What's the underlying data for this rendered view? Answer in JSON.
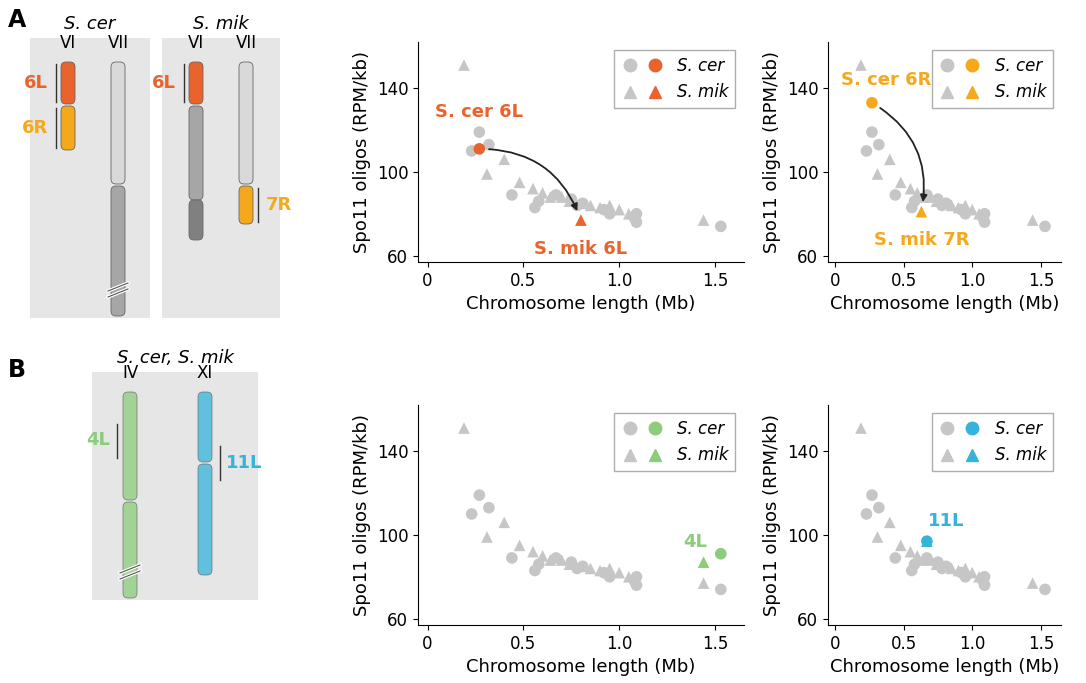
{
  "diagrams": [
    {
      "panel": "A",
      "groups": [
        {
          "title": "S. cer",
          "chromosomes": [
            {
              "name": "VI",
              "arms": [
                {
                  "label": "6L",
                  "color": "#e9632c"
                },
                {
                  "label": "6R",
                  "color": "#f6a81c"
                }
              ]
            },
            {
              "name": "VII",
              "arms": []
            }
          ]
        },
        {
          "title": "S. mik",
          "chromosomes": [
            {
              "name": "VI",
              "arms": [
                {
                  "label": "6L",
                  "color": "#e9632c"
                }
              ]
            },
            {
              "name": "VII",
              "arms": [
                {
                  "label": "7R",
                  "color": "#f6a81c"
                }
              ]
            }
          ]
        }
      ]
    },
    {
      "panel": "B",
      "groups": [
        {
          "title": "S. cer, S. mik",
          "chromosomes": [
            {
              "name": "IV",
              "arms": [
                {
                  "label": "4L",
                  "color": "#8dcc7c"
                }
              ]
            },
            {
              "name": "XI",
              "arms": [
                {
                  "label": "11L",
                  "color": "#35b4db"
                }
              ]
            }
          ]
        }
      ]
    }
  ],
  "chart_data": [
    {
      "type": "scatter",
      "xlabel": "Chromosome length (Mb)",
      "ylabel": "Spo11 oligos (RPM/kb)",
      "xlim": [
        -0.05,
        1.65
      ],
      "ylim": [
        57,
        162
      ],
      "xticks": [
        0,
        0.5,
        {
          "value": 1,
          "label": "1.0"
        },
        1.5
      ],
      "yticks": [
        60,
        100,
        140
      ],
      "legend": "upper right",
      "series": [
        {
          "name": "S. cer",
          "marker": "circle",
          "color": "#c6c6c6",
          "x": [
            0.23,
            0.27,
            0.32,
            0.44,
            0.56,
            0.58,
            0.67,
            0.75,
            0.78,
            0.81,
            0.92,
            0.95,
            1.08,
            1.09,
            1.09,
            1.53
          ],
          "values": [
            110,
            119,
            113,
            89,
            83,
            86,
            89,
            87,
            84,
            85,
            82,
            80,
            78,
            76,
            80,
            74
          ]
        },
        {
          "name": "S. mik",
          "marker": "triangle",
          "color": "#c6c6c6",
          "x": [
            0.19,
            0.31,
            0.4,
            0.48,
            0.55,
            0.6,
            0.64,
            0.7,
            0.74,
            0.8,
            0.85,
            0.9,
            0.95,
            1.0,
            1.05,
            1.44
          ],
          "values": [
            151,
            99,
            106,
            95,
            92,
            90,
            88,
            88,
            86,
            85,
            84,
            83,
            84,
            82,
            80,
            77
          ]
        },
        {
          "name": "S. cer",
          "marker": "circle",
          "color": "#e9632c",
          "x": [
            0.27
          ],
          "values": [
            111
          ]
        },
        {
          "name": "S. mik",
          "marker": "triangle",
          "color": "#e9632c",
          "x": [
            0.8
          ],
          "values": [
            77
          ]
        }
      ],
      "annotations": [
        {
          "text": "S. cer 6L",
          "x": 0.27,
          "y": 111,
          "color": "#e9632c"
        },
        {
          "text": "S. mik 6L",
          "x": 0.8,
          "y": 77,
          "color": "#e9632c"
        }
      ]
    },
    {
      "type": "scatter",
      "xlabel": "Chromosome length (Mb)",
      "ylabel": "Spo11 oligos (RPM/kb)",
      "xlim": [
        -0.05,
        1.65
      ],
      "ylim": [
        57,
        162
      ],
      "xticks": [
        0,
        0.5,
        {
          "value": 1,
          "label": "1.0"
        },
        1.5
      ],
      "yticks": [
        60,
        100,
        140
      ],
      "legend": "upper right",
      "series": [
        {
          "name": "S. cer",
          "marker": "circle",
          "color": "#c6c6c6",
          "x": [
            0.23,
            0.27,
            0.32,
            0.44,
            0.56,
            0.58,
            0.67,
            0.75,
            0.78,
            0.81,
            0.92,
            0.95,
            1.08,
            1.09,
            1.09,
            1.53
          ],
          "values": [
            110,
            119,
            113,
            89,
            83,
            86,
            89,
            87,
            84,
            85,
            82,
            80,
            78,
            76,
            80,
            74
          ]
        },
        {
          "name": "S. mik",
          "marker": "triangle",
          "color": "#c6c6c6",
          "x": [
            0.19,
            0.31,
            0.4,
            0.48,
            0.55,
            0.6,
            0.64,
            0.7,
            0.74,
            0.8,
            0.85,
            0.9,
            0.95,
            1.0,
            1.05,
            1.44
          ],
          "values": [
            151,
            99,
            106,
            95,
            92,
            90,
            88,
            88,
            86,
            85,
            84,
            83,
            84,
            82,
            80,
            77
          ]
        },
        {
          "name": "S. cer",
          "marker": "circle",
          "color": "#f6a81c",
          "x": [
            0.27
          ],
          "values": [
            133
          ]
        },
        {
          "name": "S. mik",
          "marker": "triangle",
          "color": "#f6a81c",
          "x": [
            0.63
          ],
          "values": [
            81
          ]
        }
      ],
      "annotations": [
        {
          "text": "S. cer 6R",
          "x": 0.27,
          "y": 133,
          "color": "#f6a81c"
        },
        {
          "text": "S. mik 7R",
          "x": 0.63,
          "y": 81,
          "color": "#f6a81c"
        }
      ]
    },
    {
      "type": "scatter",
      "xlabel": "Chromosome length (Mb)",
      "ylabel": "Spo11 oligos (RPM/kb)",
      "xlim": [
        -0.05,
        1.65
      ],
      "ylim": [
        57,
        162
      ],
      "xticks": [
        0,
        0.5,
        {
          "value": 1,
          "label": "1.0"
        },
        1.5
      ],
      "yticks": [
        60,
        100,
        140
      ],
      "legend": "upper right",
      "series": [
        {
          "name": "S. cer",
          "marker": "circle",
          "color": "#c6c6c6",
          "x": [
            0.23,
            0.27,
            0.32,
            0.44,
            0.56,
            0.58,
            0.67,
            0.75,
            0.78,
            0.81,
            0.92,
            0.95,
            1.08,
            1.09,
            1.09,
            1.53
          ],
          "values": [
            110,
            119,
            113,
            89,
            83,
            86,
            89,
            87,
            84,
            85,
            82,
            80,
            78,
            76,
            80,
            74
          ]
        },
        {
          "name": "S. mik",
          "marker": "triangle",
          "color": "#c6c6c6",
          "x": [
            0.19,
            0.31,
            0.4,
            0.48,
            0.55,
            0.6,
            0.64,
            0.7,
            0.74,
            0.8,
            0.85,
            0.9,
            0.95,
            1.0,
            1.05,
            1.44
          ],
          "values": [
            151,
            99,
            106,
            95,
            92,
            90,
            88,
            88,
            86,
            85,
            84,
            83,
            84,
            82,
            80,
            77
          ]
        },
        {
          "name": "S. cer",
          "marker": "circle",
          "color": "#8dcc7c",
          "x": [
            1.53
          ],
          "values": [
            91
          ]
        },
        {
          "name": "S. mik",
          "marker": "triangle",
          "color": "#8dcc7c",
          "x": [
            1.44
          ],
          "values": [
            87
          ]
        }
      ],
      "annotations": [
        {
          "text": "4L",
          "x": 1.44,
          "y": 87,
          "color": "#8dcc7c"
        }
      ]
    },
    {
      "type": "scatter",
      "xlabel": "Chromosome length (Mb)",
      "ylabel": "Spo11 oligos (RPM/kb)",
      "xlim": [
        -0.05,
        1.65
      ],
      "ylim": [
        57,
        162
      ],
      "xticks": [
        0,
        0.5,
        {
          "value": 1,
          "label": "1.0"
        },
        1.5
      ],
      "yticks": [
        60,
        100,
        140
      ],
      "legend": "upper right",
      "series": [
        {
          "name": "S. cer",
          "marker": "circle",
          "color": "#c6c6c6",
          "x": [
            0.23,
            0.27,
            0.32,
            0.44,
            0.56,
            0.58,
            0.67,
            0.75,
            0.78,
            0.81,
            0.92,
            0.95,
            1.08,
            1.09,
            1.09,
            1.53
          ],
          "values": [
            110,
            119,
            113,
            89,
            83,
            86,
            89,
            87,
            84,
            85,
            82,
            80,
            78,
            76,
            80,
            74
          ]
        },
        {
          "name": "S. mik",
          "marker": "triangle",
          "color": "#c6c6c6",
          "x": [
            0.19,
            0.31,
            0.4,
            0.48,
            0.55,
            0.6,
            0.64,
            0.7,
            0.74,
            0.8,
            0.85,
            0.9,
            0.95,
            1.0,
            1.05,
            1.44
          ],
          "values": [
            151,
            99,
            106,
            95,
            92,
            90,
            88,
            88,
            86,
            85,
            84,
            83,
            84,
            82,
            80,
            77
          ]
        },
        {
          "name": "S. cer",
          "marker": "circle",
          "color": "#35b4db",
          "x": [
            0.67
          ],
          "values": [
            97
          ]
        },
        {
          "name": "S. mik",
          "marker": "triangle",
          "color": "#35b4db",
          "x": [
            0.67
          ],
          "values": [
            97
          ]
        }
      ],
      "annotations": [
        {
          "text": "11L",
          "x": 0.67,
          "y": 97,
          "color": "#35b4db"
        }
      ]
    }
  ]
}
